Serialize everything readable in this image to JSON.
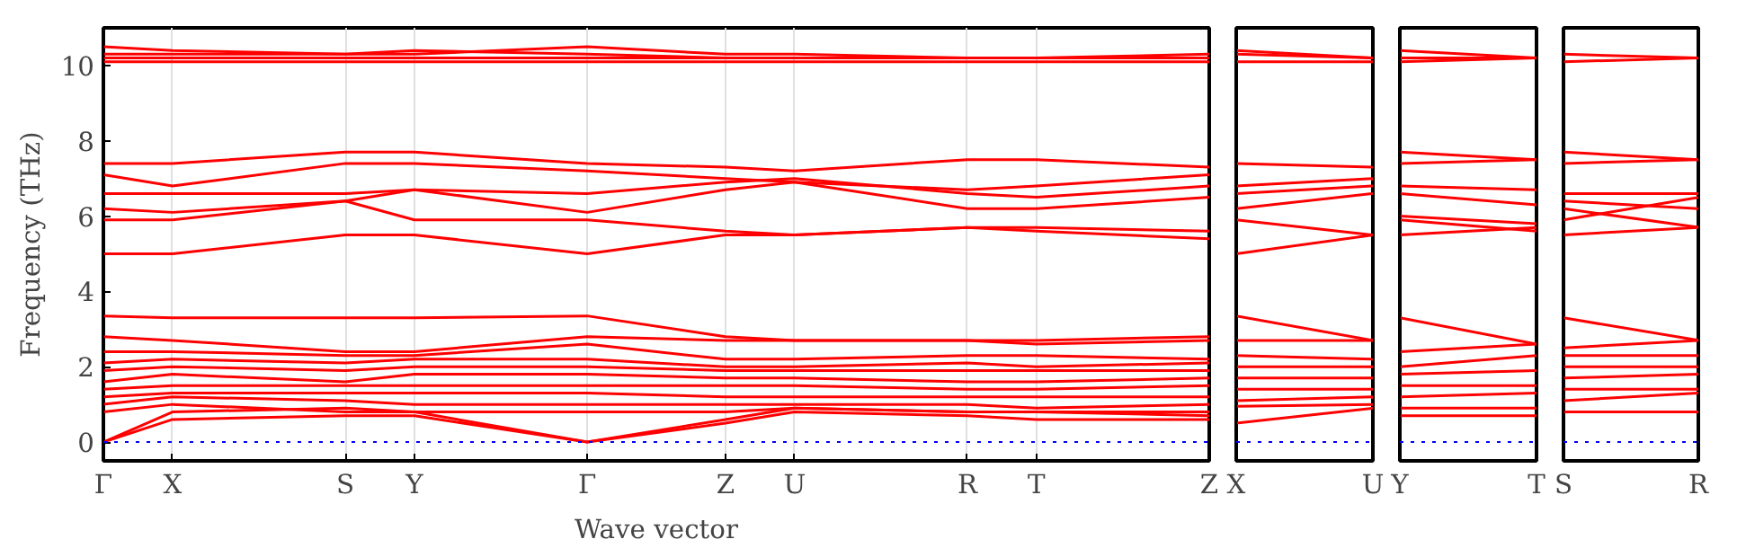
{
  "chart_data": [
    {
      "type": "line",
      "ylabel": "Frequency (THz)",
      "xlabel": "Wave vector",
      "categories": [
        "Γ",
        null,
        "X",
        null,
        null,
        null,
        null,
        "S",
        null,
        "Y",
        null,
        null,
        null,
        null,
        "Γ",
        null,
        null,
        null,
        "Z",
        null,
        "U",
        null,
        null,
        null,
        null,
        "R",
        null,
        "T",
        null,
        null,
        null,
        null,
        "Z"
      ],
      "ylim": [
        -0.5,
        11
      ],
      "yticks": [
        0,
        2,
        4,
        6,
        8,
        10
      ],
      "grid": "x",
      "ref_lines": [
        {
          "axis": "y",
          "value": 0,
          "color": "#0000ff",
          "line_style": "dotted"
        }
      ],
      "series": [
        {
          "color": "#ff0000",
          "values": [
            10.5,
            null,
            10.4,
            null,
            null,
            null,
            null,
            10.3,
            null,
            10.3,
            null,
            null,
            null,
            null,
            10.5,
            null,
            null,
            null,
            10.3,
            null,
            10.3,
            null,
            null,
            null,
            null,
            10.2,
            null,
            10.2,
            null,
            null,
            null,
            null,
            10.3
          ]
        },
        {
          "color": "#ff0000",
          "values": [
            10.3,
            null,
            10.3,
            null,
            null,
            null,
            null,
            10.3,
            null,
            10.4,
            null,
            null,
            null,
            null,
            10.3,
            null,
            null,
            null,
            10.2,
            null,
            10.2,
            null,
            null,
            null,
            null,
            10.2,
            null,
            10.2,
            null,
            null,
            null,
            null,
            10.2
          ]
        },
        {
          "color": "#ff0000",
          "values": [
            10.2,
            null,
            10.2,
            null,
            null,
            null,
            null,
            10.2,
            null,
            10.2,
            null,
            null,
            null,
            null,
            10.2,
            null,
            null,
            null,
            10.2,
            null,
            10.2,
            null,
            null,
            null,
            null,
            10.2,
            null,
            10.2,
            null,
            null,
            null,
            null,
            10.2
          ]
        },
        {
          "color": "#ff0000",
          "values": [
            10.1,
            null,
            10.1,
            null,
            null,
            null,
            null,
            10.1,
            null,
            10.1,
            null,
            null,
            null,
            null,
            10.1,
            null,
            null,
            null,
            10.1,
            null,
            10.1,
            null,
            null,
            null,
            null,
            10.1,
            null,
            10.1,
            null,
            null,
            null,
            null,
            10.1
          ]
        },
        {
          "color": "#ff0000",
          "values": [
            7.4,
            null,
            7.4,
            null,
            null,
            null,
            null,
            7.7,
            null,
            7.7,
            null,
            null,
            null,
            null,
            7.4,
            null,
            null,
            null,
            7.3,
            null,
            7.2,
            null,
            null,
            null,
            null,
            7.5,
            null,
            7.5,
            null,
            null,
            null,
            null,
            7.3
          ]
        },
        {
          "color": "#ff0000",
          "values": [
            7.1,
            null,
            6.8,
            null,
            null,
            null,
            null,
            7.4,
            null,
            7.4,
            null,
            null,
            null,
            null,
            7.2,
            null,
            null,
            null,
            7.0,
            null,
            6.9,
            null,
            null,
            null,
            null,
            6.7,
            null,
            6.8,
            null,
            null,
            null,
            null,
            7.1
          ]
        },
        {
          "color": "#ff0000",
          "values": [
            6.6,
            null,
            6.6,
            null,
            null,
            null,
            null,
            6.6,
            null,
            6.7,
            null,
            null,
            null,
            null,
            6.6,
            null,
            null,
            null,
            6.9,
            null,
            7.0,
            null,
            null,
            null,
            null,
            6.6,
            null,
            6.5,
            null,
            null,
            null,
            null,
            6.8
          ]
        },
        {
          "color": "#ff0000",
          "values": [
            6.2,
            null,
            6.1,
            null,
            null,
            null,
            null,
            6.4,
            null,
            6.7,
            null,
            null,
            null,
            null,
            6.1,
            null,
            null,
            null,
            6.7,
            null,
            6.9,
            null,
            null,
            null,
            null,
            6.2,
            null,
            6.2,
            null,
            null,
            null,
            null,
            6.5
          ]
        },
        {
          "color": "#ff0000",
          "values": [
            5.9,
            null,
            5.9,
            null,
            null,
            null,
            null,
            6.4,
            null,
            5.9,
            null,
            null,
            null,
            null,
            5.9,
            null,
            null,
            null,
            5.6,
            null,
            5.5,
            null,
            null,
            null,
            null,
            5.7,
            null,
            5.7,
            null,
            null,
            null,
            null,
            5.6
          ]
        },
        {
          "color": "#ff0000",
          "values": [
            5.0,
            null,
            5.0,
            null,
            null,
            null,
            null,
            5.5,
            null,
            5.5,
            null,
            null,
            null,
            null,
            5.0,
            null,
            null,
            null,
            5.5,
            null,
            5.5,
            null,
            null,
            null,
            null,
            5.7,
            null,
            5.6,
            null,
            null,
            null,
            null,
            5.4
          ]
        },
        {
          "color": "#ff0000",
          "values": [
            3.35,
            null,
            3.3,
            null,
            null,
            null,
            null,
            3.3,
            null,
            3.3,
            null,
            null,
            null,
            null,
            3.35,
            null,
            null,
            null,
            2.8,
            null,
            2.7,
            null,
            null,
            null,
            null,
            2.7,
            null,
            2.7,
            null,
            null,
            null,
            null,
            2.8
          ]
        },
        {
          "color": "#ff0000",
          "values": [
            2.8,
            null,
            2.7,
            null,
            null,
            null,
            null,
            2.4,
            null,
            2.4,
            null,
            null,
            null,
            null,
            2.8,
            null,
            null,
            null,
            2.7,
            null,
            2.7,
            null,
            null,
            null,
            null,
            2.7,
            null,
            2.6,
            null,
            null,
            null,
            null,
            2.7
          ]
        },
        {
          "color": "#ff0000",
          "values": [
            2.4,
            null,
            2.4,
            null,
            null,
            null,
            null,
            2.3,
            null,
            2.3,
            null,
            null,
            null,
            null,
            2.6,
            null,
            null,
            null,
            2.2,
            null,
            2.2,
            null,
            null,
            null,
            null,
            2.3,
            null,
            2.3,
            null,
            null,
            null,
            null,
            2.2
          ]
        },
        {
          "color": "#ff0000",
          "values": [
            2.1,
            null,
            2.2,
            null,
            null,
            null,
            null,
            2.1,
            null,
            2.2,
            null,
            null,
            null,
            null,
            2.2,
            null,
            null,
            null,
            2.0,
            null,
            2.0,
            null,
            null,
            null,
            null,
            2.1,
            null,
            2.0,
            null,
            null,
            null,
            null,
            2.1
          ]
        },
        {
          "color": "#ff0000",
          "values": [
            1.9,
            null,
            2.0,
            null,
            null,
            null,
            null,
            1.9,
            null,
            2.0,
            null,
            null,
            null,
            null,
            2.0,
            null,
            null,
            null,
            1.9,
            null,
            1.9,
            null,
            null,
            null,
            null,
            1.9,
            null,
            1.9,
            null,
            null,
            null,
            null,
            1.9
          ]
        },
        {
          "color": "#ff0000",
          "values": [
            1.6,
            null,
            1.8,
            null,
            null,
            null,
            null,
            1.6,
            null,
            1.8,
            null,
            null,
            null,
            null,
            1.8,
            null,
            null,
            null,
            1.7,
            null,
            1.7,
            null,
            null,
            null,
            null,
            1.6,
            null,
            1.6,
            null,
            null,
            null,
            null,
            1.7
          ]
        },
        {
          "color": "#ff0000",
          "values": [
            1.4,
            null,
            1.5,
            null,
            null,
            null,
            null,
            1.5,
            null,
            1.5,
            null,
            null,
            null,
            null,
            1.5,
            null,
            null,
            null,
            1.5,
            null,
            1.5,
            null,
            null,
            null,
            null,
            1.4,
            null,
            1.4,
            null,
            null,
            null,
            null,
            1.5
          ]
        },
        {
          "color": "#ff0000",
          "values": [
            1.2,
            null,
            1.3,
            null,
            null,
            null,
            null,
            1.3,
            null,
            1.3,
            null,
            null,
            null,
            null,
            1.3,
            null,
            null,
            null,
            1.2,
            null,
            1.2,
            null,
            null,
            null,
            null,
            1.2,
            null,
            1.2,
            null,
            null,
            null,
            null,
            1.2
          ]
        },
        {
          "color": "#ff0000",
          "values": [
            1.0,
            null,
            1.2,
            null,
            null,
            null,
            null,
            1.1,
            null,
            1.0,
            null,
            null,
            null,
            null,
            1.0,
            null,
            null,
            null,
            1.0,
            null,
            1.0,
            null,
            null,
            null,
            null,
            1.0,
            null,
            0.9,
            null,
            null,
            null,
            null,
            1.0
          ]
        },
        {
          "color": "#ff0000",
          "values": [
            0.8,
            null,
            1.0,
            null,
            null,
            null,
            null,
            0.8,
            null,
            0.8,
            null,
            null,
            null,
            null,
            0.8,
            null,
            null,
            null,
            0.8,
            null,
            0.9,
            null,
            null,
            null,
            null,
            0.8,
            null,
            0.8,
            null,
            null,
            null,
            null,
            0.8
          ]
        },
        {
          "color": "#ff0000",
          "values": [
            0,
            null,
            0.8,
            null,
            null,
            null,
            null,
            0.9,
            null,
            0.8,
            null,
            null,
            null,
            null,
            0,
            null,
            null,
            null,
            0.6,
            null,
            0.9,
            null,
            null,
            null,
            null,
            0.8,
            null,
            0.8,
            null,
            null,
            null,
            null,
            0.7
          ]
        },
        {
          "color": "#ff0000",
          "values": [
            0,
            null,
            0.6,
            null,
            null,
            null,
            null,
            0.7,
            null,
            0.7,
            null,
            null,
            null,
            null,
            0,
            null,
            null,
            null,
            0.5,
            null,
            0.8,
            null,
            null,
            null,
            null,
            0.7,
            null,
            0.6,
            null,
            null,
            null,
            null,
            0.6
          ]
        }
      ]
    },
    {
      "type": "line",
      "categories": [
        "X",
        "U"
      ],
      "ylim": [
        -0.5,
        11
      ],
      "yticks": [
        0,
        2,
        4,
        6,
        8,
        10
      ],
      "tick_labels": "x",
      "ref_lines": [
        {
          "axis": "y",
          "value": 0,
          "color": "#0000ff",
          "line_style": "dotted"
        }
      ],
      "series": [
        {
          "color": "#ff0000",
          "values": [
            10.4,
            10.2
          ]
        },
        {
          "color": "#ff0000",
          "values": [
            10.3,
            10.2
          ]
        },
        {
          "color": "#ff0000",
          "values": [
            10.1,
            10.1
          ]
        },
        {
          "color": "#ff0000",
          "values": [
            7.4,
            7.3
          ]
        },
        {
          "color": "#ff0000",
          "values": [
            6.8,
            7.0
          ]
        },
        {
          "color": "#ff0000",
          "values": [
            6.6,
            6.8
          ]
        },
        {
          "color": "#ff0000",
          "values": [
            6.2,
            6.6
          ]
        },
        {
          "color": "#ff0000",
          "values": [
            5.9,
            5.5
          ]
        },
        {
          "color": "#ff0000",
          "values": [
            5.0,
            5.5
          ]
        },
        {
          "color": "#ff0000",
          "values": [
            3.35,
            2.7
          ]
        },
        {
          "color": "#ff0000",
          "values": [
            2.7,
            2.7
          ]
        },
        {
          "color": "#ff0000",
          "values": [
            2.3,
            2.2
          ]
        },
        {
          "color": "#ff0000",
          "values": [
            2.0,
            2.0
          ]
        },
        {
          "color": "#ff0000",
          "values": [
            1.7,
            1.7
          ]
        },
        {
          "color": "#ff0000",
          "values": [
            1.4,
            1.4
          ]
        },
        {
          "color": "#ff0000",
          "values": [
            1.1,
            1.2
          ]
        },
        {
          "color": "#ff0000",
          "values": [
            0.95,
            1.0
          ]
        },
        {
          "color": "#ff0000",
          "values": [
            0.5,
            0.9
          ]
        }
      ]
    },
    {
      "type": "line",
      "categories": [
        "Y",
        "T"
      ],
      "ylim": [
        -0.5,
        11
      ],
      "yticks": [
        0,
        2,
        4,
        6,
        8,
        10
      ],
      "tick_labels": "x",
      "ref_lines": [
        {
          "axis": "y",
          "value": 0,
          "color": "#0000ff",
          "line_style": "dotted"
        }
      ],
      "series": [
        {
          "color": "#ff0000",
          "values": [
            10.4,
            10.2
          ]
        },
        {
          "color": "#ff0000",
          "values": [
            10.2,
            10.2
          ]
        },
        {
          "color": "#ff0000",
          "values": [
            10.1,
            10.2
          ]
        },
        {
          "color": "#ff0000",
          "values": [
            7.7,
            7.5
          ]
        },
        {
          "color": "#ff0000",
          "values": [
            7.4,
            7.5
          ]
        },
        {
          "color": "#ff0000",
          "values": [
            6.8,
            6.7
          ]
        },
        {
          "color": "#ff0000",
          "values": [
            6.6,
            6.3
          ]
        },
        {
          "color": "#ff0000",
          "values": [
            6.0,
            5.8
          ]
        },
        {
          "color": "#ff0000",
          "values": [
            5.9,
            5.6
          ]
        },
        {
          "color": "#ff0000",
          "values": [
            5.5,
            5.7
          ]
        },
        {
          "color": "#ff0000",
          "values": [
            3.3,
            2.6
          ]
        },
        {
          "color": "#ff0000",
          "values": [
            2.4,
            2.6
          ]
        },
        {
          "color": "#ff0000",
          "values": [
            2.0,
            2.3
          ]
        },
        {
          "color": "#ff0000",
          "values": [
            1.8,
            1.9
          ]
        },
        {
          "color": "#ff0000",
          "values": [
            1.5,
            1.5
          ]
        },
        {
          "color": "#ff0000",
          "values": [
            1.2,
            1.3
          ]
        },
        {
          "color": "#ff0000",
          "values": [
            0.9,
            0.9
          ]
        },
        {
          "color": "#ff0000",
          "values": [
            0.7,
            0.7
          ]
        }
      ]
    },
    {
      "type": "line",
      "categories": [
        "S",
        "R"
      ],
      "ylim": [
        -0.5,
        11
      ],
      "yticks": [
        0,
        2,
        4,
        6,
        8,
        10
      ],
      "tick_labels": "x",
      "ref_lines": [
        {
          "axis": "y",
          "value": 0,
          "color": "#0000ff",
          "line_style": "dotted"
        }
      ],
      "series": [
        {
          "color": "#ff0000",
          "values": [
            10.3,
            10.2
          ]
        },
        {
          "color": "#ff0000",
          "values": [
            10.1,
            10.2
          ]
        },
        {
          "color": "#ff0000",
          "values": [
            7.7,
            7.5
          ]
        },
        {
          "color": "#ff0000",
          "values": [
            7.4,
            7.5
          ]
        },
        {
          "color": "#ff0000",
          "values": [
            6.6,
            6.6
          ]
        },
        {
          "color": "#ff0000",
          "values": [
            6.4,
            6.2
          ]
        },
        {
          "color": "#ff0000",
          "values": [
            6.2,
            5.7
          ]
        },
        {
          "color": "#ff0000",
          "values": [
            5.9,
            6.5
          ]
        },
        {
          "color": "#ff0000",
          "values": [
            5.5,
            5.7
          ]
        },
        {
          "color": "#ff0000",
          "values": [
            3.3,
            2.7
          ]
        },
        {
          "color": "#ff0000",
          "values": [
            2.5,
            2.7
          ]
        },
        {
          "color": "#ff0000",
          "values": [
            2.3,
            2.3
          ]
        },
        {
          "color": "#ff0000",
          "values": [
            2.0,
            2.0
          ]
        },
        {
          "color": "#ff0000",
          "values": [
            1.7,
            1.8
          ]
        },
        {
          "color": "#ff0000",
          "values": [
            1.4,
            1.4
          ]
        },
        {
          "color": "#ff0000",
          "values": [
            1.1,
            1.3
          ]
        },
        {
          "color": "#ff0000",
          "values": [
            0.8,
            0.8
          ]
        }
      ]
    }
  ]
}
